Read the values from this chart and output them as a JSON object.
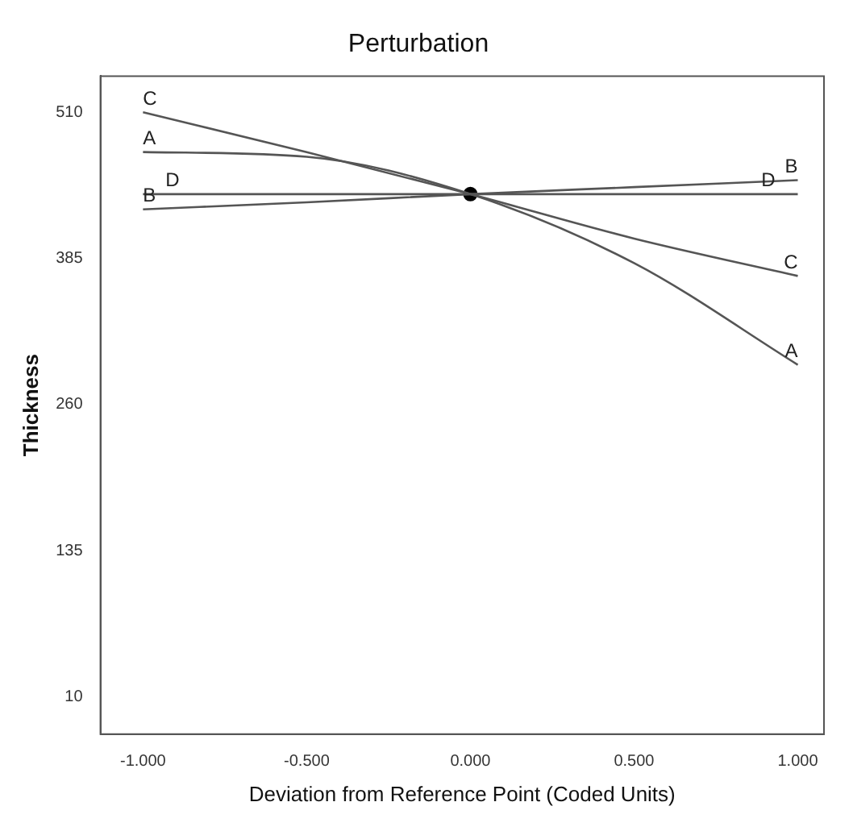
{
  "chart_data": {
    "type": "line",
    "title": "Perturbation",
    "xlabel": "Deviation from Reference Point (Coded Units)",
    "ylabel": "Thickness",
    "x": [
      -1,
      -0.5,
      0,
      0.5,
      1
    ],
    "series": [
      {
        "name": "A",
        "color": "#555555",
        "values": [
          476,
          472,
          440,
          381,
          294
        ]
      },
      {
        "name": "B",
        "color": "#555555",
        "values": [
          427,
          433,
          440,
          446,
          452
        ]
      },
      {
        "name": "C",
        "color": "#555555",
        "values": [
          510,
          476,
          440,
          402,
          370
        ]
      },
      {
        "name": "D",
        "color": "#555555",
        "values": [
          440,
          440,
          440,
          440,
          440
        ]
      },
      {
        "type": "scatter",
        "color": "#000000",
        "x": [
          0
        ],
        "values": [
          440
        ],
        "marker": "circle"
      }
    ],
    "xlim": [
      -1.13,
      1.08
    ],
    "ylim": [
      -22,
      541
    ],
    "xticks": [
      {
        "value": -1,
        "label": "-1.000"
      },
      {
        "value": -0.5,
        "label": "-0.500"
      },
      {
        "value": 0,
        "label": "0.000"
      },
      {
        "value": 0.5,
        "label": "0.500"
      },
      {
        "value": 1,
        "label": "1.000"
      }
    ],
    "yticks": [
      10,
      135,
      260,
      385,
      510
    ],
    "grid": false,
    "legend": false,
    "marker": "none",
    "line_style": "solid"
  }
}
